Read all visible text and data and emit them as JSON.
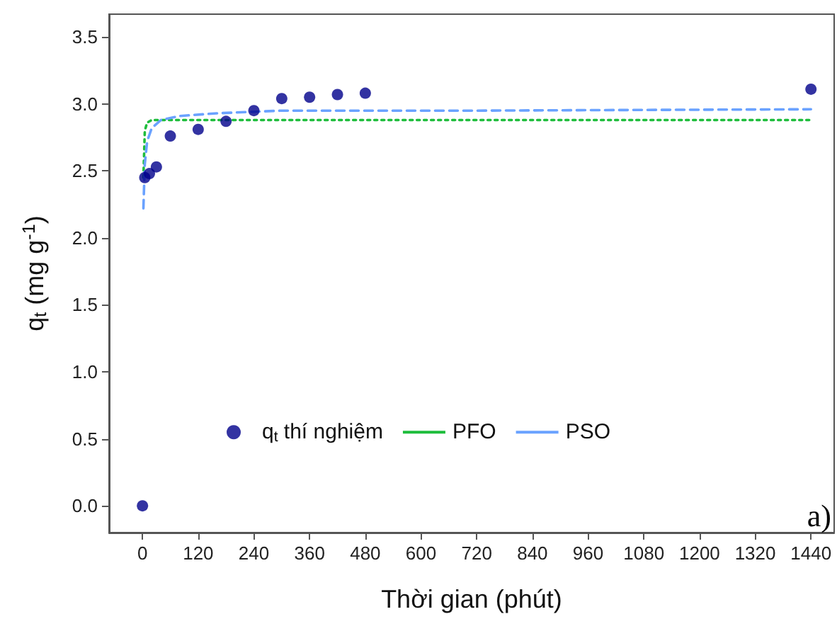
{
  "chart_data": {
    "type": "scatter",
    "xlabel": "Thời gian (phút)",
    "ylabel": "q$_{t}$ (mg g$^{-1}$)",
    "annotations": [
      "a)"
    ],
    "xlim": [
      -72,
      1490
    ],
    "xticks": [
      0,
      120,
      240,
      360,
      480,
      600,
      720,
      840,
      960,
      1080,
      1200,
      1320,
      1440
    ],
    "ylim": [
      -0.2,
      3.67
    ],
    "yticks": [
      {
        "value": 0,
        "label": "0.0"
      },
      0.5,
      {
        "value": 1,
        "label": "1.0"
      },
      1.5,
      {
        "value": 2,
        "label": "2.0"
      },
      2.5,
      {
        "value": 3,
        "label": "3.0"
      },
      3.5
    ],
    "legend": "bottom",
    "series": [
      {
        "name": "q$_{t}$ thí nghiệm",
        "marker": "circle",
        "color": "#00008b",
        "x": [
          0,
          5,
          15,
          30,
          60,
          120,
          180,
          240,
          300,
          360,
          420,
          480,
          1440
        ],
        "values": [
          0,
          2.45,
          2.48,
          2.53,
          2.76,
          2.81,
          2.87,
          2.95,
          3.04,
          3.05,
          3.07,
          3.08,
          3.11
        ]
      },
      {
        "name": "PFO",
        "type": "line",
        "marker": "none",
        "line_style": "dotted",
        "color": "#1ebd3c",
        "x": [
          2,
          5,
          10,
          20,
          60,
          1440
        ],
        "values": [
          2.45,
          2.8,
          2.86,
          2.88,
          2.88,
          2.88
        ]
      },
      {
        "name": "PSO",
        "type": "line",
        "marker": "none",
        "line_style": "dashed",
        "color": "#6aa2ff",
        "x": [
          2,
          5,
          10,
          20,
          40,
          80,
          160,
          300,
          720,
          1440
        ],
        "values": [
          2.22,
          2.55,
          2.72,
          2.82,
          2.88,
          2.91,
          2.93,
          2.95,
          2.95,
          2.96
        ]
      }
    ]
  }
}
